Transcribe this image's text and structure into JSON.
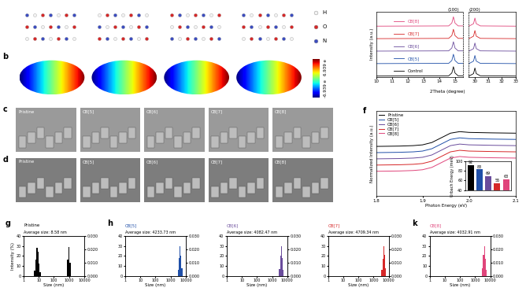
{
  "a": {
    "legend": [
      {
        "name": "H",
        "color": "#f2f2f2"
      },
      {
        "name": "O",
        "color": "#d62728"
      },
      {
        "name": "N",
        "color": "#3b4cc0"
      }
    ]
  },
  "b": {
    "label": "b",
    "colorbar_labels": [
      "6.939 e",
      "-6.939 e"
    ]
  },
  "c": {
    "label": "c",
    "images": [
      "Pristine",
      "CB[5]",
      "CB[6]",
      "CB[7]",
      "CB[8]"
    ]
  },
  "d": {
    "label": "d",
    "images": [
      "Pristine",
      "CB[5]",
      "CB[6]",
      "CB[7]",
      "CB[8]"
    ]
  },
  "chart_data": [
    {
      "type": "line",
      "x_label": "2Theta (degree)",
      "y_label": "Intensity (a.u.)",
      "tick_labels": "x",
      "peak_labels": [
        {
          "x": 14.9,
          "label": "(100)"
        },
        {
          "x": 30.0,
          "label": "(200)"
        }
      ],
      "segments": [
        {
          "xlim": [
            10,
            15.5
          ],
          "xticks": [
            10,
            11,
            12,
            13,
            14,
            15
          ]
        },
        {
          "xlim": [
            29.5,
            33
          ],
          "xticks": [
            30,
            31,
            32,
            33
          ]
        }
      ],
      "ylim": [
        0,
        5.2
      ],
      "x": [
        10,
        14.6,
        14.8,
        14.9,
        15.0,
        15.2,
        29.6,
        29.9,
        30.0,
        30.1,
        30.4,
        33
      ],
      "series": [
        {
          "name": "Control",
          "color": "#000000",
          "values": [
            0.05,
            0.07,
            0.3,
            0.8,
            0.3,
            0.07,
            0.07,
            0.25,
            0.7,
            0.25,
            0.07,
            0.05
          ]
        },
        {
          "name": "CB[5]",
          "color": "#1f4fa8",
          "values": [
            1.05,
            1.07,
            1.3,
            1.8,
            1.3,
            1.07,
            1.07,
            1.25,
            1.7,
            1.25,
            1.07,
            1.05
          ]
        },
        {
          "name": "CB[6]",
          "color": "#6a4c9c",
          "values": [
            2.05,
            2.07,
            2.3,
            2.8,
            2.3,
            2.07,
            2.07,
            2.25,
            2.7,
            2.25,
            2.07,
            2.05
          ]
        },
        {
          "name": "CB[7]",
          "color": "#d62728",
          "values": [
            3.05,
            3.07,
            3.3,
            3.8,
            3.3,
            3.07,
            3.07,
            3.25,
            3.7,
            3.25,
            3.07,
            3.05
          ]
        },
        {
          "name": "CB[8]",
          "color": "#e0457b",
          "values": [
            4.05,
            4.07,
            4.3,
            4.8,
            4.3,
            4.07,
            4.07,
            4.25,
            4.7,
            4.25,
            4.07,
            4.05
          ]
        }
      ]
    },
    {
      "type": "line",
      "label": "f",
      "x_label": "Photon Energy (eV)",
      "y_label": "Normalized Intensity (a.u.)",
      "tick_labels": "x",
      "legend": "upper left",
      "xlim": [
        1.8,
        2.1
      ],
      "xticks": [
        1.8,
        1.9,
        2.0,
        2.1
      ],
      "ylim": [
        0,
        5.5
      ],
      "x": [
        1.8,
        1.85,
        1.88,
        1.9,
        1.92,
        1.94,
        1.96,
        1.98,
        2.0,
        2.05,
        2.1
      ],
      "series": [
        {
          "name": "Pristine",
          "color": "#000000",
          "values": [
            3.2,
            3.22,
            3.25,
            3.3,
            3.45,
            3.75,
            4.05,
            4.15,
            4.1,
            4.07,
            4.05
          ]
        },
        {
          "name": "CB[5]",
          "color": "#1f4fa8",
          "values": [
            2.8,
            2.82,
            2.85,
            2.9,
            3.05,
            3.35,
            3.65,
            3.75,
            3.7,
            3.67,
            3.65
          ]
        },
        {
          "name": "CB[6]",
          "color": "#6a4c9c",
          "values": [
            2.4,
            2.42,
            2.45,
            2.5,
            2.65,
            2.95,
            3.25,
            3.35,
            3.3,
            3.27,
            3.25
          ]
        },
        {
          "name": "CB[7]",
          "color": "#d62728",
          "values": [
            2.0,
            2.02,
            2.05,
            2.1,
            2.25,
            2.55,
            2.85,
            2.95,
            2.9,
            2.87,
            2.85
          ]
        },
        {
          "name": "CB[8]",
          "color": "#e0457b",
          "values": [
            1.6,
            1.62,
            1.65,
            1.7,
            1.85,
            2.15,
            2.45,
            2.55,
            2.5,
            2.47,
            2.45
          ]
        }
      ],
      "inset": {
        "type": "bar",
        "y_label": "Urbach Energy (meV)",
        "categories": [
          null,
          null,
          null,
          null,
          null
        ],
        "values": [
          92,
          83,
          69,
          55,
          63
        ],
        "colors": [
          "#000000",
          "#1f4fa8",
          "#6a4c9c",
          "#d62728",
          "#e0457b"
        ],
        "ylim": [
          40,
          100
        ],
        "yticks": [
          40,
          60,
          80,
          100
        ],
        "data_labels": true,
        "tick_labels": "y"
      }
    },
    {
      "type": "histogram",
      "label": "g",
      "name": "Pristine",
      "annotation": "Average size: 8.58 nm",
      "color": "#000000",
      "log": "x",
      "x_label": "Size (nm)",
      "y_label": "Intensity (%)",
      "xlim": [
        1,
        10000
      ],
      "xticks": [
        1,
        10,
        100,
        1000,
        10000
      ],
      "ylim": [
        0,
        40
      ],
      "yticks": [
        0,
        10,
        20,
        30,
        40
      ],
      "y2lim": [
        0,
        0.03
      ],
      "y2ticks": [
        {
          "value": 0,
          "label": "0.000"
        },
        {
          "value": 0.01,
          "label": "0.010"
        },
        {
          "value": 0.02,
          "label": "0.020"
        },
        {
          "value": 0.03,
          "label": "0.030"
        }
      ],
      "series": [
        {
          "bins": [
            5.0,
            5.9,
            6.9,
            8.1,
            9.5,
            11.2,
            13.1
          ],
          "counts": [
            5,
            16,
            28,
            24,
            12,
            4
          ]
        },
        {
          "axis": "y2",
          "bins": [
            750,
            900,
            1080,
            1300
          ],
          "counts": [
            0.012,
            0.022,
            0.01
          ]
        }
      ]
    },
    {
      "type": "histogram",
      "label": "h",
      "name": "CB[5]",
      "annotation": "Average size: 4233.73 nm",
      "color": "#1f4fa8",
      "log": "x",
      "x_label": "Size (nm)",
      "xlim": [
        1,
        10000
      ],
      "xticks": [
        1,
        10,
        100,
        1000,
        10000
      ],
      "ylim": [
        0,
        40
      ],
      "yticks": [
        0,
        10,
        20,
        30,
        40
      ],
      "y2lim": [
        0,
        0.03
      ],
      "y2ticks": [
        {
          "value": 0,
          "label": "0.000"
        },
        {
          "value": 0.01,
          "label": "0.010"
        },
        {
          "value": 0.02,
          "label": "0.020"
        },
        {
          "value": 0.03,
          "label": "0.030"
        }
      ],
      "series": [
        {
          "bins": [
            3000,
            3450,
            3950,
            4550,
            5250,
            6050
          ],
          "counts": [
            6,
            18,
            30,
            20,
            8
          ]
        }
      ]
    },
    {
      "type": "histogram",
      "name": "CB[6]",
      "annotation": "Average size: 4082.47 nm",
      "color": "#6a4c9c",
      "log": "x",
      "x_label": "Size (nm)",
      "xlim": [
        1,
        10000
      ],
      "xticks": [
        1,
        10,
        100,
        1000,
        10000
      ],
      "ylim": [
        0,
        40
      ],
      "yticks": [
        0,
        10,
        20,
        30,
        40
      ],
      "y2lim": [
        0,
        0.03
      ],
      "y2ticks": [
        {
          "value": 0,
          "label": "0.000"
        },
        {
          "value": 0.01,
          "label": "0.010"
        },
        {
          "value": 0.02,
          "label": "0.020"
        },
        {
          "value": 0.03,
          "label": "0.030"
        }
      ],
      "series": [
        {
          "bins": [
            2900,
            3350,
            3850,
            4450,
            5100,
            5900
          ],
          "counts": [
            7,
            20,
            30,
            18,
            6
          ]
        }
      ]
    },
    {
      "type": "histogram",
      "name": "CB[7]",
      "annotation": "Average size: 4709.34 nm",
      "color": "#d62728",
      "log": "x",
      "x_label": "Size (nm)",
      "xlim": [
        1,
        10000
      ],
      "xticks": [
        1,
        10,
        100,
        1000,
        10000
      ],
      "ylim": [
        0,
        40
      ],
      "yticks": [
        0,
        10,
        20,
        30,
        40
      ],
      "y2lim": [
        0,
        0.03
      ],
      "y2ticks": [
        {
          "value": 0,
          "label": "0.000"
        },
        {
          "value": 0.01,
          "label": "0.010"
        },
        {
          "value": 0.02,
          "label": "0.020"
        },
        {
          "value": 0.03,
          "label": "0.030"
        }
      ],
      "series": [
        {
          "bins": [
            3300,
            3800,
            4400,
            5050,
            5800,
            6700
          ],
          "counts": [
            6,
            17,
            30,
            21,
            8
          ]
        }
      ]
    },
    {
      "type": "histogram",
      "label": "k",
      "name": "CB[8]",
      "annotation": "Average size: 4032.91 nm",
      "color": "#e0457b",
      "log": "x",
      "x_label": "Size (nm)",
      "xlim": [
        1,
        10000
      ],
      "xticks": [
        1,
        10,
        100,
        1000,
        10000
      ],
      "ylim": [
        0,
        40
      ],
      "yticks": [
        0,
        10,
        20,
        30,
        40
      ],
      "y2lim": [
        0,
        0.03
      ],
      "y2ticks": [
        {
          "value": 0,
          "label": "0.000"
        },
        {
          "value": 0.01,
          "label": "0.010"
        },
        {
          "value": 0.02,
          "label": "0.020"
        },
        {
          "value": 0.03,
          "label": "0.030"
        }
      ],
      "series": [
        {
          "bins": [
            2850,
            3300,
            3800,
            4400,
            5050,
            5850
          ],
          "counts": [
            8,
            21,
            30,
            17,
            6
          ]
        }
      ]
    }
  ]
}
